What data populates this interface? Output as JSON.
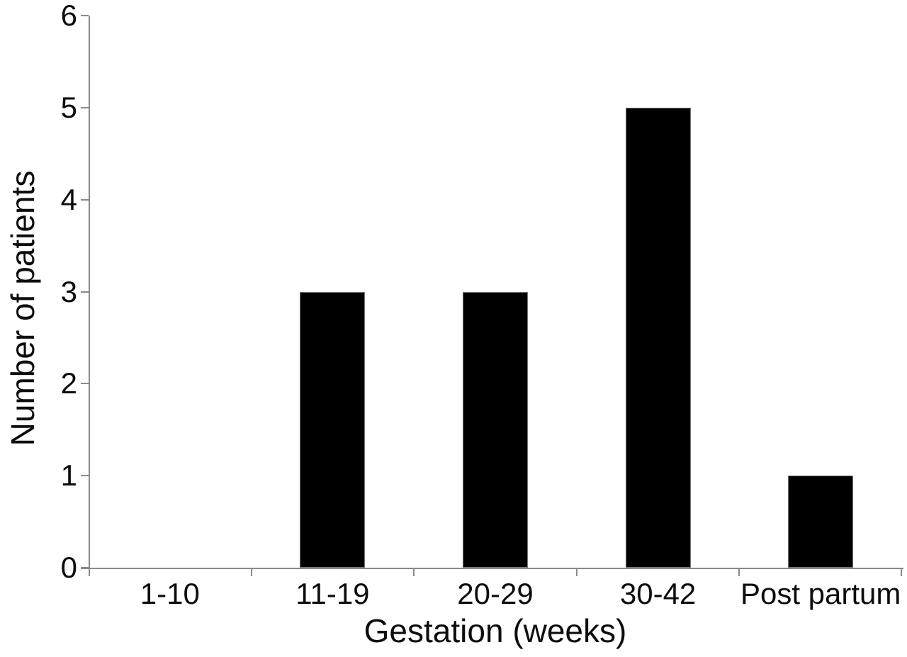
{
  "chart_data": {
    "type": "bar",
    "title": "",
    "xlabel": "Gestation (weeks)",
    "ylabel": "Number of patients",
    "categories": [
      "1-10",
      "11-19",
      "20-29",
      "30-42",
      "Post partum"
    ],
    "values": [
      0,
      3,
      3,
      5,
      1
    ],
    "ylim": [
      0,
      6
    ],
    "y_ticks": [
      0,
      1,
      2,
      3,
      4,
      5,
      6
    ],
    "bar_color": "#000000",
    "axis_color": "#8a8a8a",
    "text_color": "#0d0d0d",
    "grid": false,
    "legend": false
  }
}
